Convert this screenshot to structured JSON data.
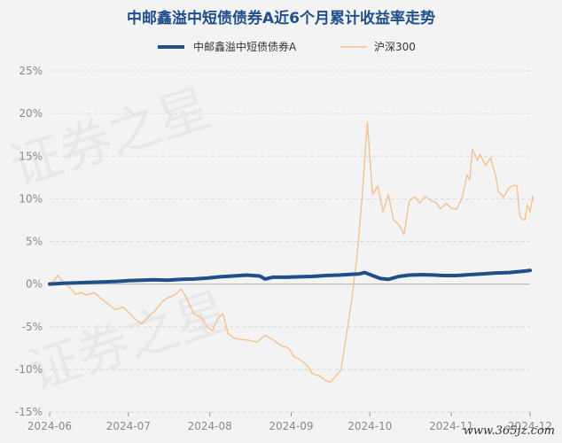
{
  "chart_data": {
    "type": "line",
    "title": "中邮鑫溢中短债债券A近6个月累计收益率走势",
    "xlabel": "",
    "ylabel": "",
    "ylim": [
      -15,
      25
    ],
    "y_ticks": [
      "25%",
      "20%",
      "15%",
      "10%",
      "5%",
      "0%",
      "-5%",
      "-10%",
      "-15%"
    ],
    "y_tick_values": [
      25,
      20,
      15,
      10,
      5,
      0,
      -5,
      -10,
      -15
    ],
    "x_ticks": [
      "2024-06",
      "2024-07",
      "2024-08",
      "2024-09",
      "2024-10",
      "2024-11",
      "2024-12"
    ],
    "x_tick_days": [
      0,
      30,
      61,
      92,
      122,
      153,
      183
    ],
    "x_range_days": [
      0,
      183
    ],
    "grid": true,
    "legend_position": "top-center",
    "series": [
      {
        "name": "中邮鑫溢中短债债券A",
        "color": "#1f4e8a",
        "points": [
          [
            0,
            0.0
          ],
          [
            5,
            0.1
          ],
          [
            10,
            0.15
          ],
          [
            15,
            0.2
          ],
          [
            20,
            0.25
          ],
          [
            25,
            0.3
          ],
          [
            30,
            0.4
          ],
          [
            35,
            0.45
          ],
          [
            40,
            0.5
          ],
          [
            45,
            0.45
          ],
          [
            50,
            0.55
          ],
          [
            55,
            0.6
          ],
          [
            60,
            0.7
          ],
          [
            65,
            0.85
          ],
          [
            70,
            0.95
          ],
          [
            75,
            1.05
          ],
          [
            80,
            0.95
          ],
          [
            82,
            0.6
          ],
          [
            85,
            0.8
          ],
          [
            90,
            0.8
          ],
          [
            95,
            0.85
          ],
          [
            100,
            0.9
          ],
          [
            105,
            1.0
          ],
          [
            110,
            1.05
          ],
          [
            115,
            1.15
          ],
          [
            118,
            1.2
          ],
          [
            120,
            1.35
          ],
          [
            123,
            1.0
          ],
          [
            126,
            0.65
          ],
          [
            129,
            0.55
          ],
          [
            133,
            0.9
          ],
          [
            137,
            1.05
          ],
          [
            142,
            1.1
          ],
          [
            147,
            1.05
          ],
          [
            150,
            1.0
          ],
          [
            155,
            1.0
          ],
          [
            160,
            1.1
          ],
          [
            165,
            1.2
          ],
          [
            170,
            1.3
          ],
          [
            175,
            1.35
          ],
          [
            180,
            1.5
          ],
          [
            183,
            1.6
          ]
        ]
      },
      {
        "name": "沪深300",
        "color": "#f4c28e",
        "points": [
          [
            0,
            0.0
          ],
          [
            2,
            0.5
          ],
          [
            3,
            1.0
          ],
          [
            5,
            0.3
          ],
          [
            8,
            -0.5
          ],
          [
            10,
            -1.2
          ],
          [
            12,
            -1.0
          ],
          [
            14,
            -1.3
          ],
          [
            17,
            -1.0
          ],
          [
            20,
            -1.8
          ],
          [
            23,
            -2.5
          ],
          [
            25,
            -3.0
          ],
          [
            28,
            -2.7
          ],
          [
            30,
            -3.3
          ],
          [
            33,
            -4.2
          ],
          [
            35,
            -4.7
          ],
          [
            37,
            -4.0
          ],
          [
            40,
            -3.2
          ],
          [
            43,
            -2.0
          ],
          [
            45,
            -1.6
          ],
          [
            48,
            -1.2
          ],
          [
            50,
            -0.6
          ],
          [
            52,
            -1.5
          ],
          [
            55,
            -3.5
          ],
          [
            58,
            -4.0
          ],
          [
            60,
            -5.0
          ],
          [
            62,
            -5.5
          ],
          [
            64,
            -4.0
          ],
          [
            66,
            -3.5
          ],
          [
            68,
            -5.8
          ],
          [
            70,
            -6.3
          ],
          [
            73,
            -6.5
          ],
          [
            76,
            -6.6
          ],
          [
            79,
            -6.8
          ],
          [
            82,
            -6.0
          ],
          [
            85,
            -6.5
          ],
          [
            88,
            -7.2
          ],
          [
            91,
            -7.5
          ],
          [
            93,
            -8.5
          ],
          [
            95,
            -8.8
          ],
          [
            98,
            -9.5
          ],
          [
            100,
            -10.5
          ],
          [
            103,
            -10.8
          ],
          [
            105,
            -11.3
          ],
          [
            107,
            -11.5
          ],
          [
            109,
            -10.8
          ],
          [
            111,
            -10.0
          ],
          [
            113,
            -6.0
          ],
          [
            115,
            -2.0
          ],
          [
            117,
            3.0
          ],
          [
            119,
            10.0
          ],
          [
            121,
            19.0
          ],
          [
            123,
            10.5
          ],
          [
            125,
            11.5
          ],
          [
            127,
            8.5
          ],
          [
            129,
            10.5
          ],
          [
            131,
            7.5
          ],
          [
            133,
            7.0
          ],
          [
            135,
            5.8
          ],
          [
            137,
            9.8
          ],
          [
            139,
            10.2
          ],
          [
            141,
            9.5
          ],
          [
            143,
            10.3
          ],
          [
            145,
            9.8
          ],
          [
            147,
            9.6
          ],
          [
            149,
            8.8
          ],
          [
            151,
            9.5
          ],
          [
            153,
            8.9
          ],
          [
            155,
            8.8
          ],
          [
            157,
            10.0
          ],
          [
            159,
            12.8
          ],
          [
            160,
            12.2
          ],
          [
            161,
            15.8
          ],
          [
            163,
            14.5
          ],
          [
            164,
            15.2
          ],
          [
            166,
            13.9
          ],
          [
            168,
            14.8
          ],
          [
            170,
            12.5
          ],
          [
            171,
            10.8
          ],
          [
            173,
            10.2
          ],
          [
            175,
            11.3
          ],
          [
            177,
            11.6
          ],
          [
            178,
            11.5
          ],
          [
            179,
            8.0
          ],
          [
            180,
            7.6
          ],
          [
            181,
            7.5
          ],
          [
            182,
            9.3
          ],
          [
            183,
            8.5
          ],
          [
            184,
            10.3
          ],
          [
            185,
            9.8
          ]
        ]
      }
    ]
  },
  "watermark": {
    "lines": [
      "证券之星",
      "证券之星"
    ],
    "site": "www.365jz.com"
  }
}
